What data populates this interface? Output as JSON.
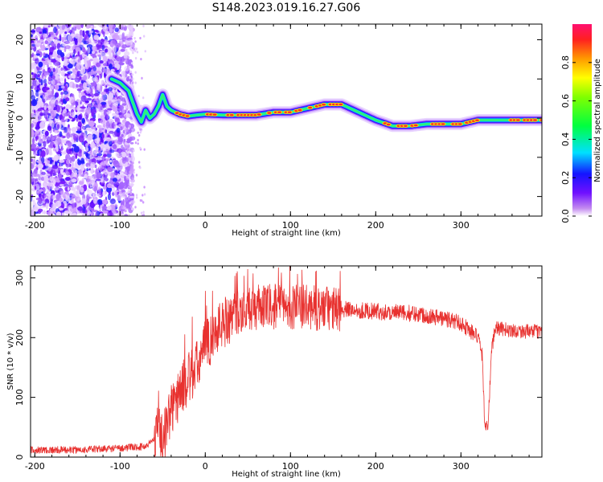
{
  "title": "S148.2023.019.16.27.G06",
  "chart_data": [
    {
      "type": "heatmap",
      "xlabel": "Height of straight line (km)",
      "ylabel": "Frequency (Hz)",
      "xlim": [
        -205,
        395
      ],
      "ylim": [
        -25,
        24
      ],
      "xticks": [
        -200,
        -100,
        0,
        100,
        200,
        300
      ],
      "yticks": [
        -20,
        -10,
        0,
        10,
        20
      ],
      "colorbar": {
        "label": "Normalized spectral amplitude",
        "range": [
          0,
          1
        ],
        "ticks": [
          "0.0",
          "0.2",
          "0.4",
          "0.6",
          "0.8"
        ],
        "colormap": "rainbow (white-purple-blue-cyan-green-yellow-orange-red-magenta)"
      },
      "ridge": {
        "x": [
          -110,
          -100,
          -90,
          -85,
          -80,
          -75,
          -70,
          -65,
          -60,
          -55,
          -50,
          -45,
          -40,
          -30,
          -20,
          -10,
          0,
          20,
          40,
          60,
          80,
          100,
          120,
          140,
          160,
          180,
          200,
          220,
          240,
          260,
          280,
          300,
          320,
          340,
          360,
          380,
          395
        ],
        "y": [
          10,
          9,
          7,
          4,
          1,
          -1,
          2,
          0,
          1,
          3,
          6,
          3,
          2,
          1,
          0.5,
          0.8,
          1,
          0.8,
          0.8,
          0.8,
          1.5,
          1.5,
          2.5,
          3.5,
          3.5,
          1.5,
          -0.5,
          -2,
          -2,
          -1.5,
          -1.5,
          -1.5,
          -0.5,
          -0.5,
          -0.5,
          -0.5,
          -0.5
        ]
      },
      "noise_region_x": [
        -205,
        -95
      ]
    },
    {
      "type": "line",
      "xlabel": "Height of straight line (km)",
      "ylabel": "SNR (10 * v/v)",
      "xlim": [
        -205,
        395
      ],
      "ylim": [
        0,
        320
      ],
      "xticks": [
        -200,
        -100,
        0,
        100,
        200,
        300
      ],
      "yticks": [
        0,
        100,
        200,
        300
      ],
      "color": "#e8312f",
      "envelope": {
        "x": [
          -205,
          -150,
          -100,
          -70,
          -60,
          -55,
          -50,
          -45,
          -40,
          -35,
          -30,
          -20,
          -10,
          0,
          10,
          20,
          30,
          40,
          50,
          60,
          80,
          100,
          120,
          150,
          180,
          200,
          220,
          250,
          280,
          300,
          320,
          325,
          328,
          332,
          336,
          340,
          345,
          360,
          380,
          395
        ],
        "y": [
          12,
          12,
          15,
          18,
          30,
          70,
          20,
          60,
          80,
          90,
          110,
          130,
          150,
          185,
          205,
          225,
          235,
          245,
          245,
          250,
          252,
          252,
          250,
          248,
          246,
          244,
          242,
          240,
          232,
          225,
          200,
          170,
          55,
          55,
          180,
          215,
          215,
          212,
          210,
          210
        ]
      }
    }
  ]
}
